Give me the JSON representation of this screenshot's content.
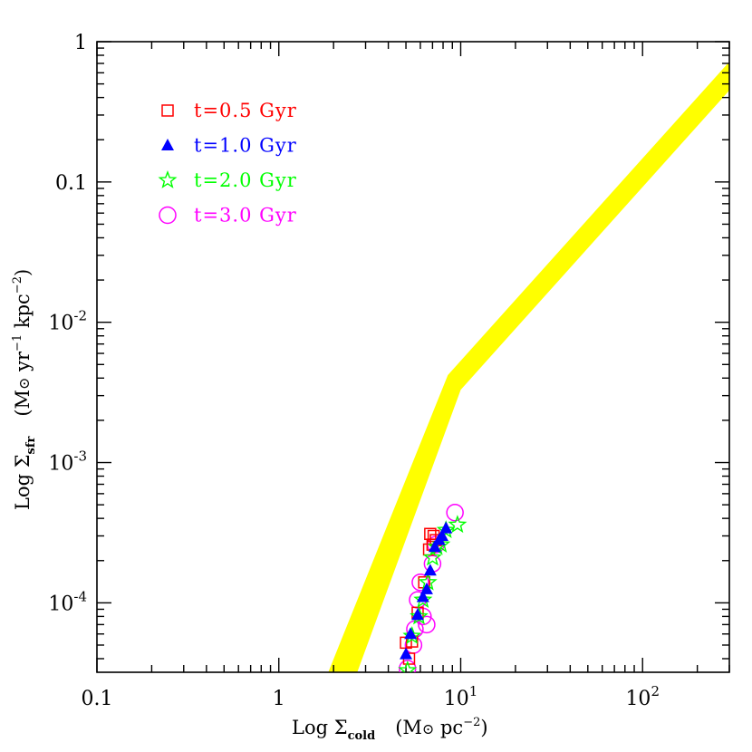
{
  "chart_data": {
    "type": "scatter",
    "xlabel": "Log Σ_cold (M⊙ pc⁻²)",
    "ylabel": "Log Σ_sfr (M⊙ yr⁻¹ kpc⁻²)",
    "x_scale": "log",
    "y_scale": "log",
    "xlim": [
      0.1,
      300
    ],
    "ylim": [
      3.2e-05,
      1
    ],
    "x_ticks": [
      {
        "value": 0.1,
        "label": "0.1"
      },
      {
        "value": 1,
        "label": "1"
      },
      {
        "value": 10,
        "label": "10",
        "sup": "1"
      },
      {
        "value": 100,
        "label": "10",
        "sup": "2"
      }
    ],
    "y_ticks": [
      {
        "value": 1,
        "label": "1"
      },
      {
        "value": 0.1,
        "label": "0.1"
      },
      {
        "value": 0.01,
        "label": "10",
        "sup": "-2"
      },
      {
        "value": 0.001,
        "label": "10",
        "sup": "-3"
      },
      {
        "value": 0.0001,
        "label": "10",
        "sup": "-4"
      }
    ],
    "band": {
      "color": "#ffff00",
      "upper": [
        [
          1.87,
          3.2e-05
        ],
        [
          8.5,
          0.0042
        ],
        [
          300,
          0.72
        ]
      ],
      "lower": [
        [
          2.7,
          3.2e-05
        ],
        [
          10.0,
          0.0033
        ],
        [
          300,
          0.45
        ]
      ]
    },
    "series": [
      {
        "name": "t=0.5 Gyr",
        "marker": "square",
        "color": "#ff0000",
        "points": [
          [
            5.0,
            5.2e-05
          ],
          [
            5.4,
            5.3e-05
          ],
          [
            5.8,
            8.5e-05
          ],
          [
            6.3,
            0.00014
          ],
          [
            6.7,
            0.00024
          ],
          [
            6.8,
            0.00031
          ],
          [
            7.1,
            0.0003
          ],
          [
            7.3,
            0.00028
          ],
          [
            7.0,
            0.00026
          ],
          [
            5.2,
            4e-05
          ]
        ]
      },
      {
        "name": "t=1.0 Gyr",
        "marker": "triangle",
        "color": "#0000ff",
        "points": [
          [
            5.0,
            4.3e-05
          ],
          [
            5.3,
            6e-05
          ],
          [
            5.8,
            8.2e-05
          ],
          [
            6.2,
            0.00011
          ],
          [
            6.5,
            0.000125
          ],
          [
            6.8,
            0.00017
          ],
          [
            7.2,
            0.00025
          ],
          [
            7.6,
            0.00028
          ],
          [
            7.9,
            0.0003
          ],
          [
            8.3,
            0.00034
          ]
        ]
      },
      {
        "name": "t=2.0 Gyr",
        "marker": "star",
        "color": "#00ff00",
        "points": [
          [
            5.1,
            3.3e-05
          ],
          [
            5.4,
            5.8e-05
          ],
          [
            5.9,
            8e-05
          ],
          [
            6.2,
            0.000105
          ],
          [
            6.6,
            0.00014
          ],
          [
            7.0,
            0.00021
          ],
          [
            7.4,
            0.00025
          ],
          [
            7.8,
            0.00026
          ],
          [
            8.3,
            0.00033
          ],
          [
            9.6,
            0.00036
          ]
        ]
      },
      {
        "name": "t=3.0 Gyr",
        "marker": "circle",
        "color": "#ff00ff",
        "points": [
          [
            5.1,
            3.4e-05
          ],
          [
            5.5,
            5e-05
          ],
          [
            5.6,
            6.5e-05
          ],
          [
            5.8,
            0.000105
          ],
          [
            6.0,
            0.00014
          ],
          [
            6.2,
            8e-05
          ],
          [
            6.5,
            7e-05
          ],
          [
            7.0,
            0.00019
          ],
          [
            7.3,
            0.00026
          ],
          [
            9.3,
            0.00044
          ]
        ]
      }
    ],
    "legend": {
      "placement": "top-left"
    }
  }
}
